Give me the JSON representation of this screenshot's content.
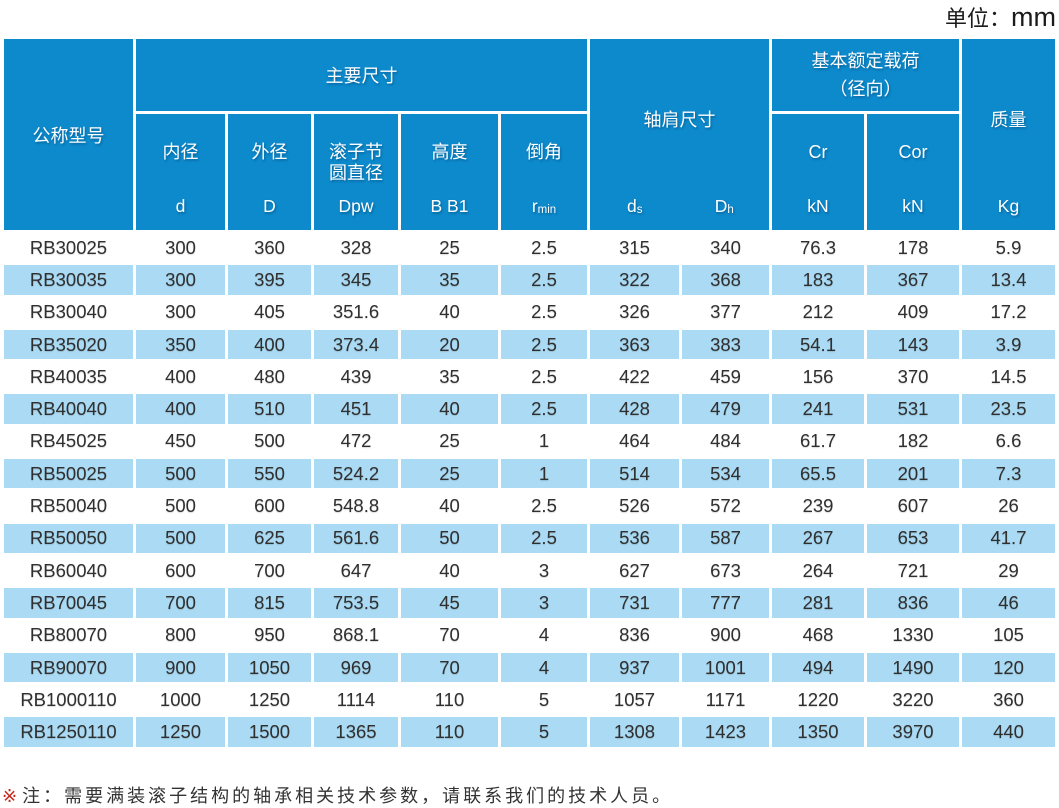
{
  "unit_label": {
    "prefix": "单位：",
    "value": "mm"
  },
  "header": {
    "model_label": "公称型号",
    "main_dims_label": "主要尺寸",
    "shoulder_label": "轴肩尺寸",
    "load_label_line1": "基本额定载荷",
    "load_label_line2": "（径向）",
    "mass_label": "质量",
    "mass_unit": "Kg",
    "inner_label": "内径",
    "inner_sym": "d",
    "outer_label": "外径",
    "outer_sym": "D",
    "pitch_label_line1": "滚子节",
    "pitch_label_line2": "圆直径",
    "pitch_sym": "Dpw",
    "height_label": "高度",
    "height_sym": "B B1",
    "chamfer_label": "倒角",
    "chamfer_sym_base": "r",
    "chamfer_sym_sub": "min",
    "ds_base": "d",
    "ds_sub": "s",
    "dh_base": "D",
    "dh_sub": "h",
    "cr_label": "Cr",
    "cr_unit": "kN",
    "cor_label": "Cor",
    "cor_unit": "kN"
  },
  "note_marker": "※",
  "note_text": "注：需要满装滚子结构的轴承相关技术参数，请联系我们的技术人员。",
  "colors": {
    "header_blue": "#0c8acc",
    "row_alt_blue": "#abdbf4",
    "note_marker_red": "#c5281c",
    "text_dark": "#2f2f2f"
  },
  "rows": [
    [
      "RB30025",
      "300",
      "360",
      "328",
      "25",
      "2.5",
      "315",
      "340",
      "76.3",
      "178",
      "5.9"
    ],
    [
      "RB30035",
      "300",
      "395",
      "345",
      "35",
      "2.5",
      "322",
      "368",
      "183",
      "367",
      "13.4"
    ],
    [
      "RB30040",
      "300",
      "405",
      "351.6",
      "40",
      "2.5",
      "326",
      "377",
      "212",
      "409",
      "17.2"
    ],
    [
      "RB35020",
      "350",
      "400",
      "373.4",
      "20",
      "2.5",
      "363",
      "383",
      "54.1",
      "143",
      "3.9"
    ],
    [
      "RB40035",
      "400",
      "480",
      "439",
      "35",
      "2.5",
      "422",
      "459",
      "156",
      "370",
      "14.5"
    ],
    [
      "RB40040",
      "400",
      "510",
      "451",
      "40",
      "2.5",
      "428",
      "479",
      "241",
      "531",
      "23.5"
    ],
    [
      "RB45025",
      "450",
      "500",
      "472",
      "25",
      "1",
      "464",
      "484",
      "61.7",
      "182",
      "6.6"
    ],
    [
      "RB50025",
      "500",
      "550",
      "524.2",
      "25",
      "1",
      "514",
      "534",
      "65.5",
      "201",
      "7.3"
    ],
    [
      "RB50040",
      "500",
      "600",
      "548.8",
      "40",
      "2.5",
      "526",
      "572",
      "239",
      "607",
      "26"
    ],
    [
      "RB50050",
      "500",
      "625",
      "561.6",
      "50",
      "2.5",
      "536",
      "587",
      "267",
      "653",
      "41.7"
    ],
    [
      "RB60040",
      "600",
      "700",
      "647",
      "40",
      "3",
      "627",
      "673",
      "264",
      "721",
      "29"
    ],
    [
      "RB70045",
      "700",
      "815",
      "753.5",
      "45",
      "3",
      "731",
      "777",
      "281",
      "836",
      "46"
    ],
    [
      "RB80070",
      "800",
      "950",
      "868.1",
      "70",
      "4",
      "836",
      "900",
      "468",
      "1330",
      "105"
    ],
    [
      "RB90070",
      "900",
      "1050",
      "969",
      "70",
      "4",
      "937",
      "1001",
      "494",
      "1490",
      "120"
    ],
    [
      "RB1000110",
      "1000",
      "1250",
      "1114",
      "110",
      "5",
      "1057",
      "1171",
      "1220",
      "3220",
      "360"
    ],
    [
      "RB1250110",
      "1250",
      "1500",
      "1365",
      "110",
      "5",
      "1308",
      "1423",
      "1350",
      "3970",
      "440"
    ]
  ]
}
